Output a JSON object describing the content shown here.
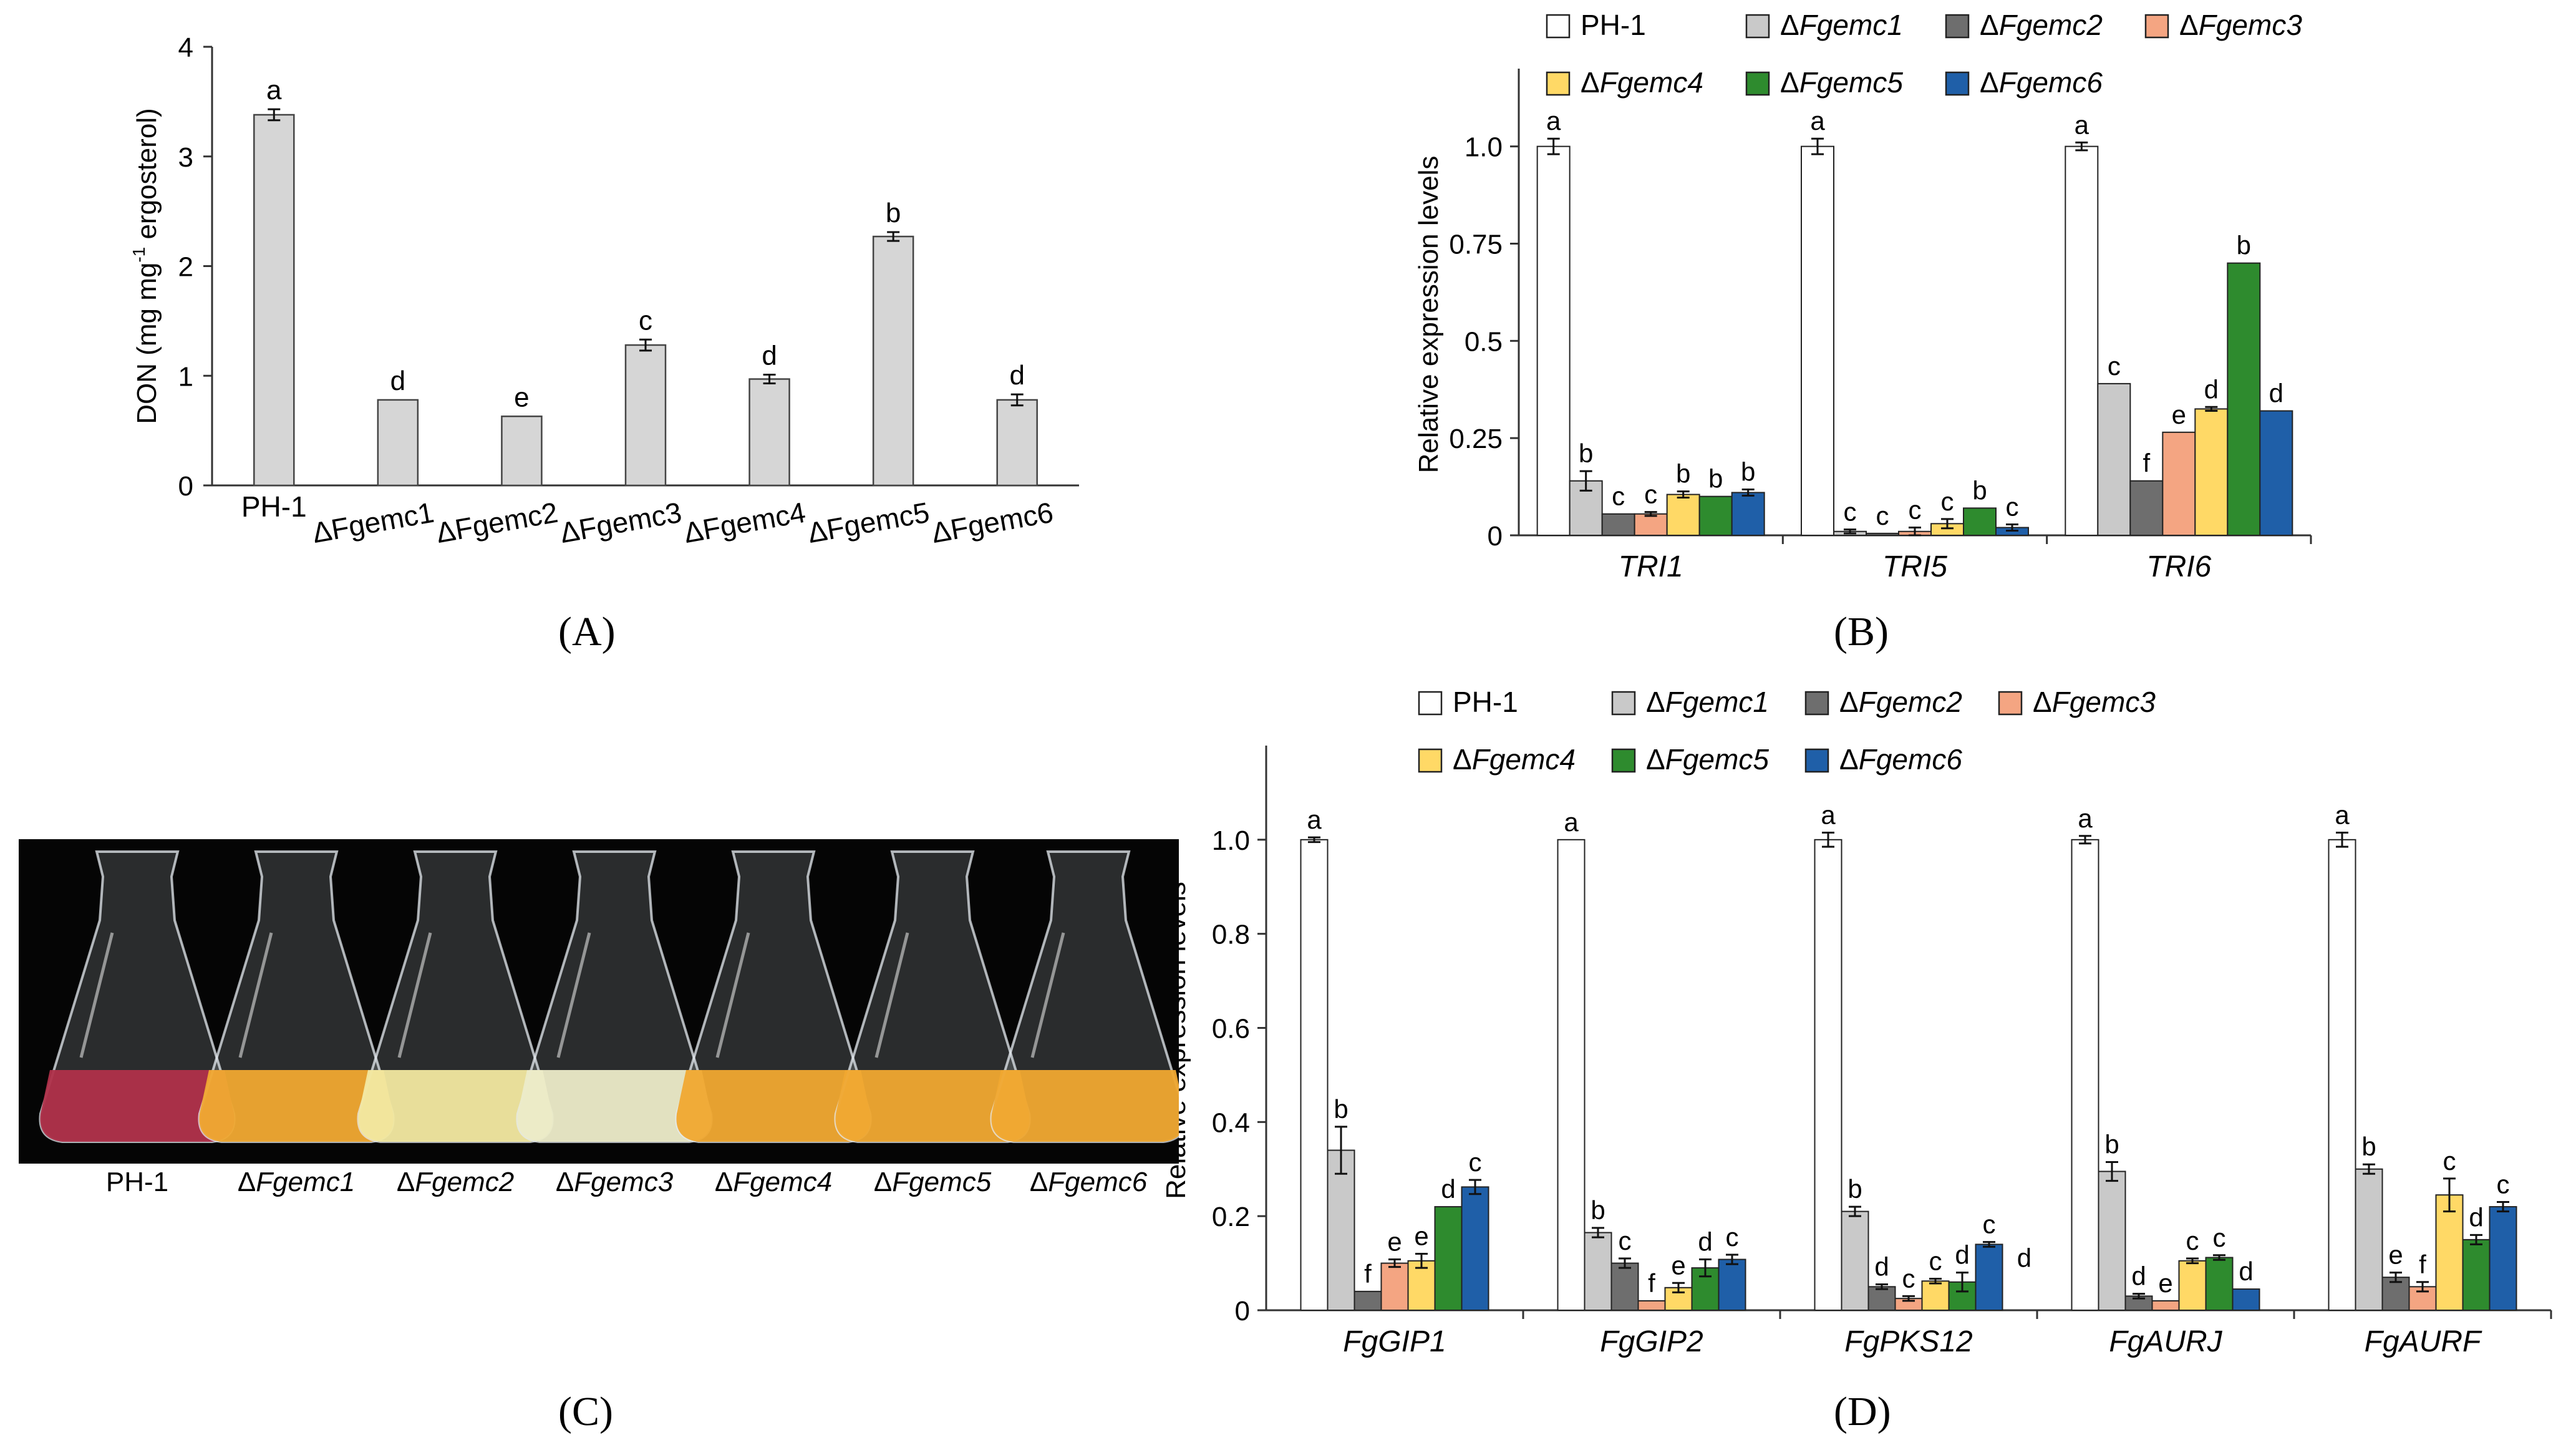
{
  "panel_labels": {
    "a": "(A)",
    "b": "(B)",
    "c": "(C)",
    "d": "(D)"
  },
  "colors": {
    "PH-1": "#ffffff",
    "ΔFgemc1": "#c9c9c9",
    "ΔFgemc2": "#6e6e6e",
    "ΔFgemc3": "#f4a582",
    "ΔFgemc4": "#ffd966",
    "ΔFgemc5": "#2e8b2e",
    "ΔFgemc6": "#1f5fa8",
    "panelA_bar": "#d6d6d6",
    "photo_bg": "#050505",
    "culture_PH-1": "#b0304a",
    "culture_orange": "#f0a830",
    "culture_pale": "#f2e8a0",
    "culture_white": "#ecebc8"
  },
  "photo_labels": [
    "PH-1",
    "ΔFgemc1",
    "ΔFgemc2",
    "ΔFgemc3",
    "ΔFgemc4",
    "ΔFgemc5",
    "ΔFgemc6"
  ],
  "chart_data": [
    {
      "id": "A",
      "type": "bar",
      "title": "",
      "xlabel": "",
      "ylabel": "DON (mg mg⁻¹ ergosterol)",
      "ylim": [
        0,
        4
      ],
      "yticks": [
        "0",
        "1",
        "2",
        "3",
        "4"
      ],
      "categories": [
        "PH-1",
        "ΔFgemc1",
        "ΔFgemc2",
        "ΔFgemc3",
        "ΔFgemc4",
        "ΔFgemc5",
        "ΔFgemc6"
      ],
      "values": [
        3.38,
        0.78,
        0.63,
        1.28,
        0.97,
        2.27,
        0.78
      ],
      "errors": [
        0.05,
        0.0,
        0.0,
        0.05,
        0.04,
        0.04,
        0.05
      ],
      "letters": [
        "a",
        "d",
        "e",
        "c",
        "d",
        "b",
        "d"
      ]
    },
    {
      "id": "B",
      "type": "bar",
      "ylabel": "Relative expression levels",
      "ylim": [
        0,
        1.2
      ],
      "yticks": [
        "0",
        "0.25",
        "0.5",
        "0.75",
        "1.0"
      ],
      "categories": [
        "TRI1",
        "TRI5",
        "TRI6"
      ],
      "legend": [
        "PH-1",
        "ΔFgemc1",
        "ΔFgemc2",
        "ΔFgemc3",
        "ΔFgemc4",
        "ΔFgemc5",
        "ΔFgemc6"
      ],
      "series": [
        {
          "name": "PH-1",
          "values": [
            1.0,
            1.0,
            1.0
          ],
          "errors": [
            0.02,
            0.02,
            0.01
          ],
          "letters": [
            "a",
            "a",
            "a"
          ]
        },
        {
          "name": "ΔFgemc1",
          "values": [
            0.14,
            0.01,
            0.39
          ],
          "errors": [
            0.025,
            0.005,
            0.0
          ],
          "letters": [
            "b",
            "c",
            "c"
          ]
        },
        {
          "name": "ΔFgemc2",
          "values": [
            0.055,
            0.005,
            0.14
          ],
          "errors": [
            0.0,
            0.0,
            0.0
          ],
          "letters": [
            "c",
            "c",
            "f"
          ]
        },
        {
          "name": "ΔFgemc3",
          "values": [
            0.055,
            0.01,
            0.265
          ],
          "errors": [
            0.005,
            0.01,
            0.0
          ],
          "letters": [
            "c",
            "c",
            "e"
          ]
        },
        {
          "name": "ΔFgemc4",
          "values": [
            0.105,
            0.03,
            0.325
          ],
          "errors": [
            0.008,
            0.012,
            0.005
          ],
          "letters": [
            "b",
            "c",
            "d"
          ]
        },
        {
          "name": "ΔFgemc5",
          "values": [
            0.1,
            0.07,
            0.7
          ],
          "errors": [
            0.0,
            0.0,
            0.0
          ],
          "letters": [
            "b",
            "b",
            "b"
          ]
        },
        {
          "name": "ΔFgemc6",
          "values": [
            0.11,
            0.02,
            0.32
          ],
          "errors": [
            0.008,
            0.008,
            0.0
          ],
          "letters": [
            "b",
            "c",
            "d"
          ]
        }
      ]
    },
    {
      "id": "D",
      "type": "bar",
      "ylabel": "Relative expression levels",
      "ylim": [
        0,
        1.2
      ],
      "yticks": [
        "0",
        "0.2",
        "0.4",
        "0.6",
        "0.8",
        "1.0"
      ],
      "categories": [
        "FgGIP1",
        "FgGIP2",
        "FgPKS12",
        "FgAURJ",
        "FgAURF"
      ],
      "legend": [
        "PH-1",
        "ΔFgemc1",
        "ΔFgemc2",
        "ΔFgemc3",
        "ΔFgemc4",
        "ΔFgemc5",
        "ΔFgemc6"
      ],
      "extra_label": "d",
      "series": [
        {
          "name": "PH-1",
          "values": [
            1.0,
            1.0,
            1.0,
            1.0,
            1.0
          ],
          "errors": [
            0.005,
            0.0,
            0.015,
            0.008,
            0.015
          ],
          "letters": [
            "a",
            "a",
            "a",
            "a",
            "a"
          ]
        },
        {
          "name": "ΔFgemc1",
          "values": [
            0.34,
            0.165,
            0.21,
            0.295,
            0.3
          ],
          "errors": [
            0.05,
            0.01,
            0.01,
            0.02,
            0.01
          ],
          "letters": [
            "b",
            "b",
            "b",
            "b",
            "b"
          ]
        },
        {
          "name": "ΔFgemc2",
          "values": [
            0.04,
            0.1,
            0.05,
            0.03,
            0.07
          ],
          "errors": [
            0.0,
            0.01,
            0.005,
            0.005,
            0.01
          ],
          "letters": [
            "f",
            "c",
            "d",
            "d",
            "e"
          ]
        },
        {
          "name": "ΔFgemc3",
          "values": [
            0.1,
            0.02,
            0.025,
            0.02,
            0.05
          ],
          "errors": [
            0.008,
            0.0,
            0.005,
            0.0,
            0.01
          ],
          "letters": [
            "e",
            "f",
            "c",
            "e",
            "f"
          ]
        },
        {
          "name": "ΔFgemc4",
          "values": [
            0.105,
            0.048,
            0.062,
            0.105,
            0.245
          ],
          "errors": [
            0.015,
            0.01,
            0.005,
            0.005,
            0.035
          ],
          "letters": [
            "e",
            "e",
            "c",
            "c",
            "c"
          ]
        },
        {
          "name": "ΔFgemc5",
          "values": [
            0.22,
            0.09,
            0.06,
            0.112,
            0.15
          ],
          "errors": [
            0.0,
            0.018,
            0.02,
            0.005,
            0.01
          ],
          "letters": [
            "d",
            "d",
            "d",
            "c",
            "d"
          ]
        },
        {
          "name": "ΔFgemc6",
          "values": [
            0.262,
            0.108,
            0.14,
            0.045,
            0.22
          ],
          "errors": [
            0.015,
            0.01,
            0.005,
            0.0,
            0.01
          ],
          "letters": [
            "c",
            "c",
            "c",
            "d",
            "c"
          ]
        }
      ]
    }
  ]
}
